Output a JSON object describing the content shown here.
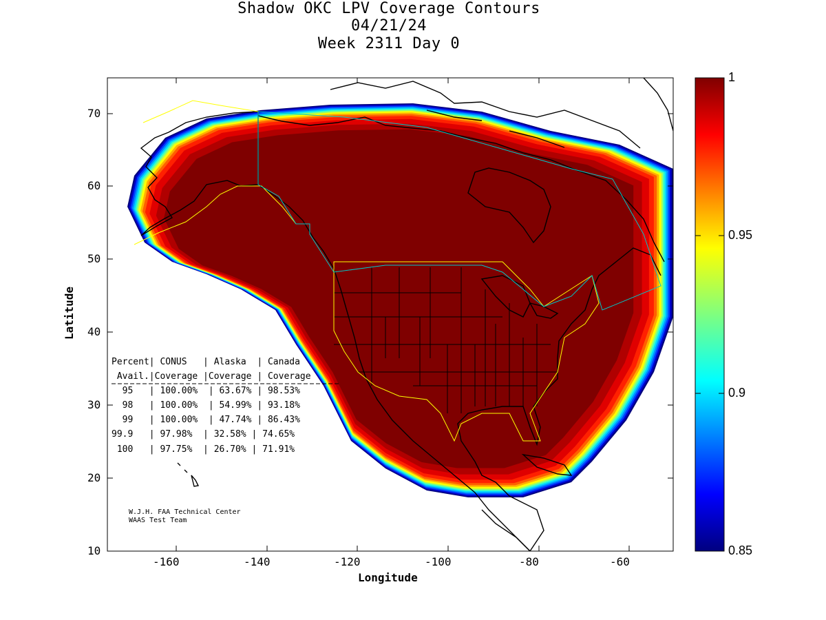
{
  "title": {
    "line1": "Shadow OKC LPV Coverage Contours",
    "line2": "04/21/24",
    "line3": "Week 2311 Day 0"
  },
  "axes": {
    "xlabel": "Longitude",
    "ylabel": "Latitude",
    "xticks": [
      "-160",
      "-140",
      "-120",
      "-100",
      "-80",
      "-60"
    ],
    "yticks": [
      "70",
      "60",
      "50",
      "40",
      "30",
      "20",
      "10"
    ],
    "xlim": [
      -175,
      -50
    ],
    "ylim": [
      10,
      75
    ]
  },
  "colorbar": {
    "ticks": [
      "1",
      "0.95",
      "0.9",
      "0.85"
    ],
    "range": [
      0.85,
      1
    ],
    "colormap": "jet"
  },
  "stats_table": {
    "header1": "Percent| CONUS   | Alaska  | Canada",
    "header2": " Avail.|Coverage |Coverage | Coverage",
    "rule": "------------------------------------------",
    "rows": [
      "  95   | 100.00%  | 63.67% | 98.53%",
      "  98   | 100.00%  | 54.99% | 93.18%",
      "  99   | 100.00%  | 47.74% | 86.43%",
      "99.9   | 97.98%  | 32.58% | 74.65%",
      " 100   | 97.75%  | 26.70% | 71.91%"
    ]
  },
  "credit": {
    "line1": "W.J.H. FAA Technical Center",
    "line2": "WAAS Test Team"
  },
  "colors": {
    "core": "#7f0000",
    "boundary_yellow": "#ffff00",
    "boundary_cyan": "#00c8c8",
    "coastline": "#000000"
  }
}
